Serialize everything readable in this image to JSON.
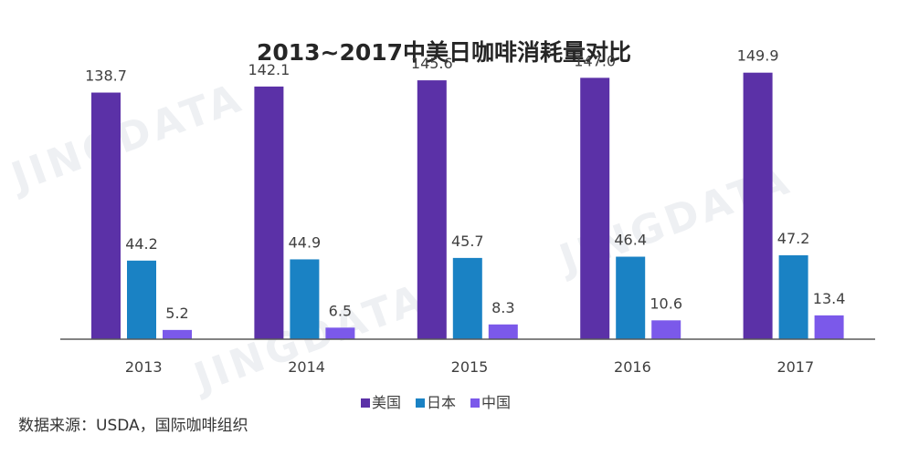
{
  "watermark": "JINGDATA",
  "source": "数据来源：USDA，国际咖啡组织",
  "chart_data": {
    "type": "bar",
    "title": "2013~2017中美日咖啡消耗量对比",
    "categories": [
      "2013",
      "2014",
      "2015",
      "2016",
      "2017"
    ],
    "series": [
      {
        "name": "美国",
        "color": "#5b31a7",
        "values": [
          138.7,
          142.1,
          145.6,
          147.0,
          149.9
        ],
        "labels": [
          "138.7",
          "142.1",
          "145.6",
          "147.0",
          "149.9"
        ]
      },
      {
        "name": "日本",
        "color": "#1a82c4",
        "values": [
          44.2,
          44.9,
          45.7,
          46.4,
          47.2
        ],
        "labels": [
          "44.2",
          "44.9",
          "45.7",
          "46.4",
          "47.2"
        ]
      },
      {
        "name": "中国",
        "color": "#7b59ea",
        "values": [
          5.2,
          6.5,
          8.3,
          10.6,
          13.4
        ],
        "labels": [
          "5.2",
          "6.5",
          "8.3",
          "10.6",
          "13.4"
        ]
      }
    ],
    "xlabel": "",
    "ylabel": "",
    "ylim": [
      0,
      160
    ],
    "legend": "bottom-center",
    "grid": false
  }
}
